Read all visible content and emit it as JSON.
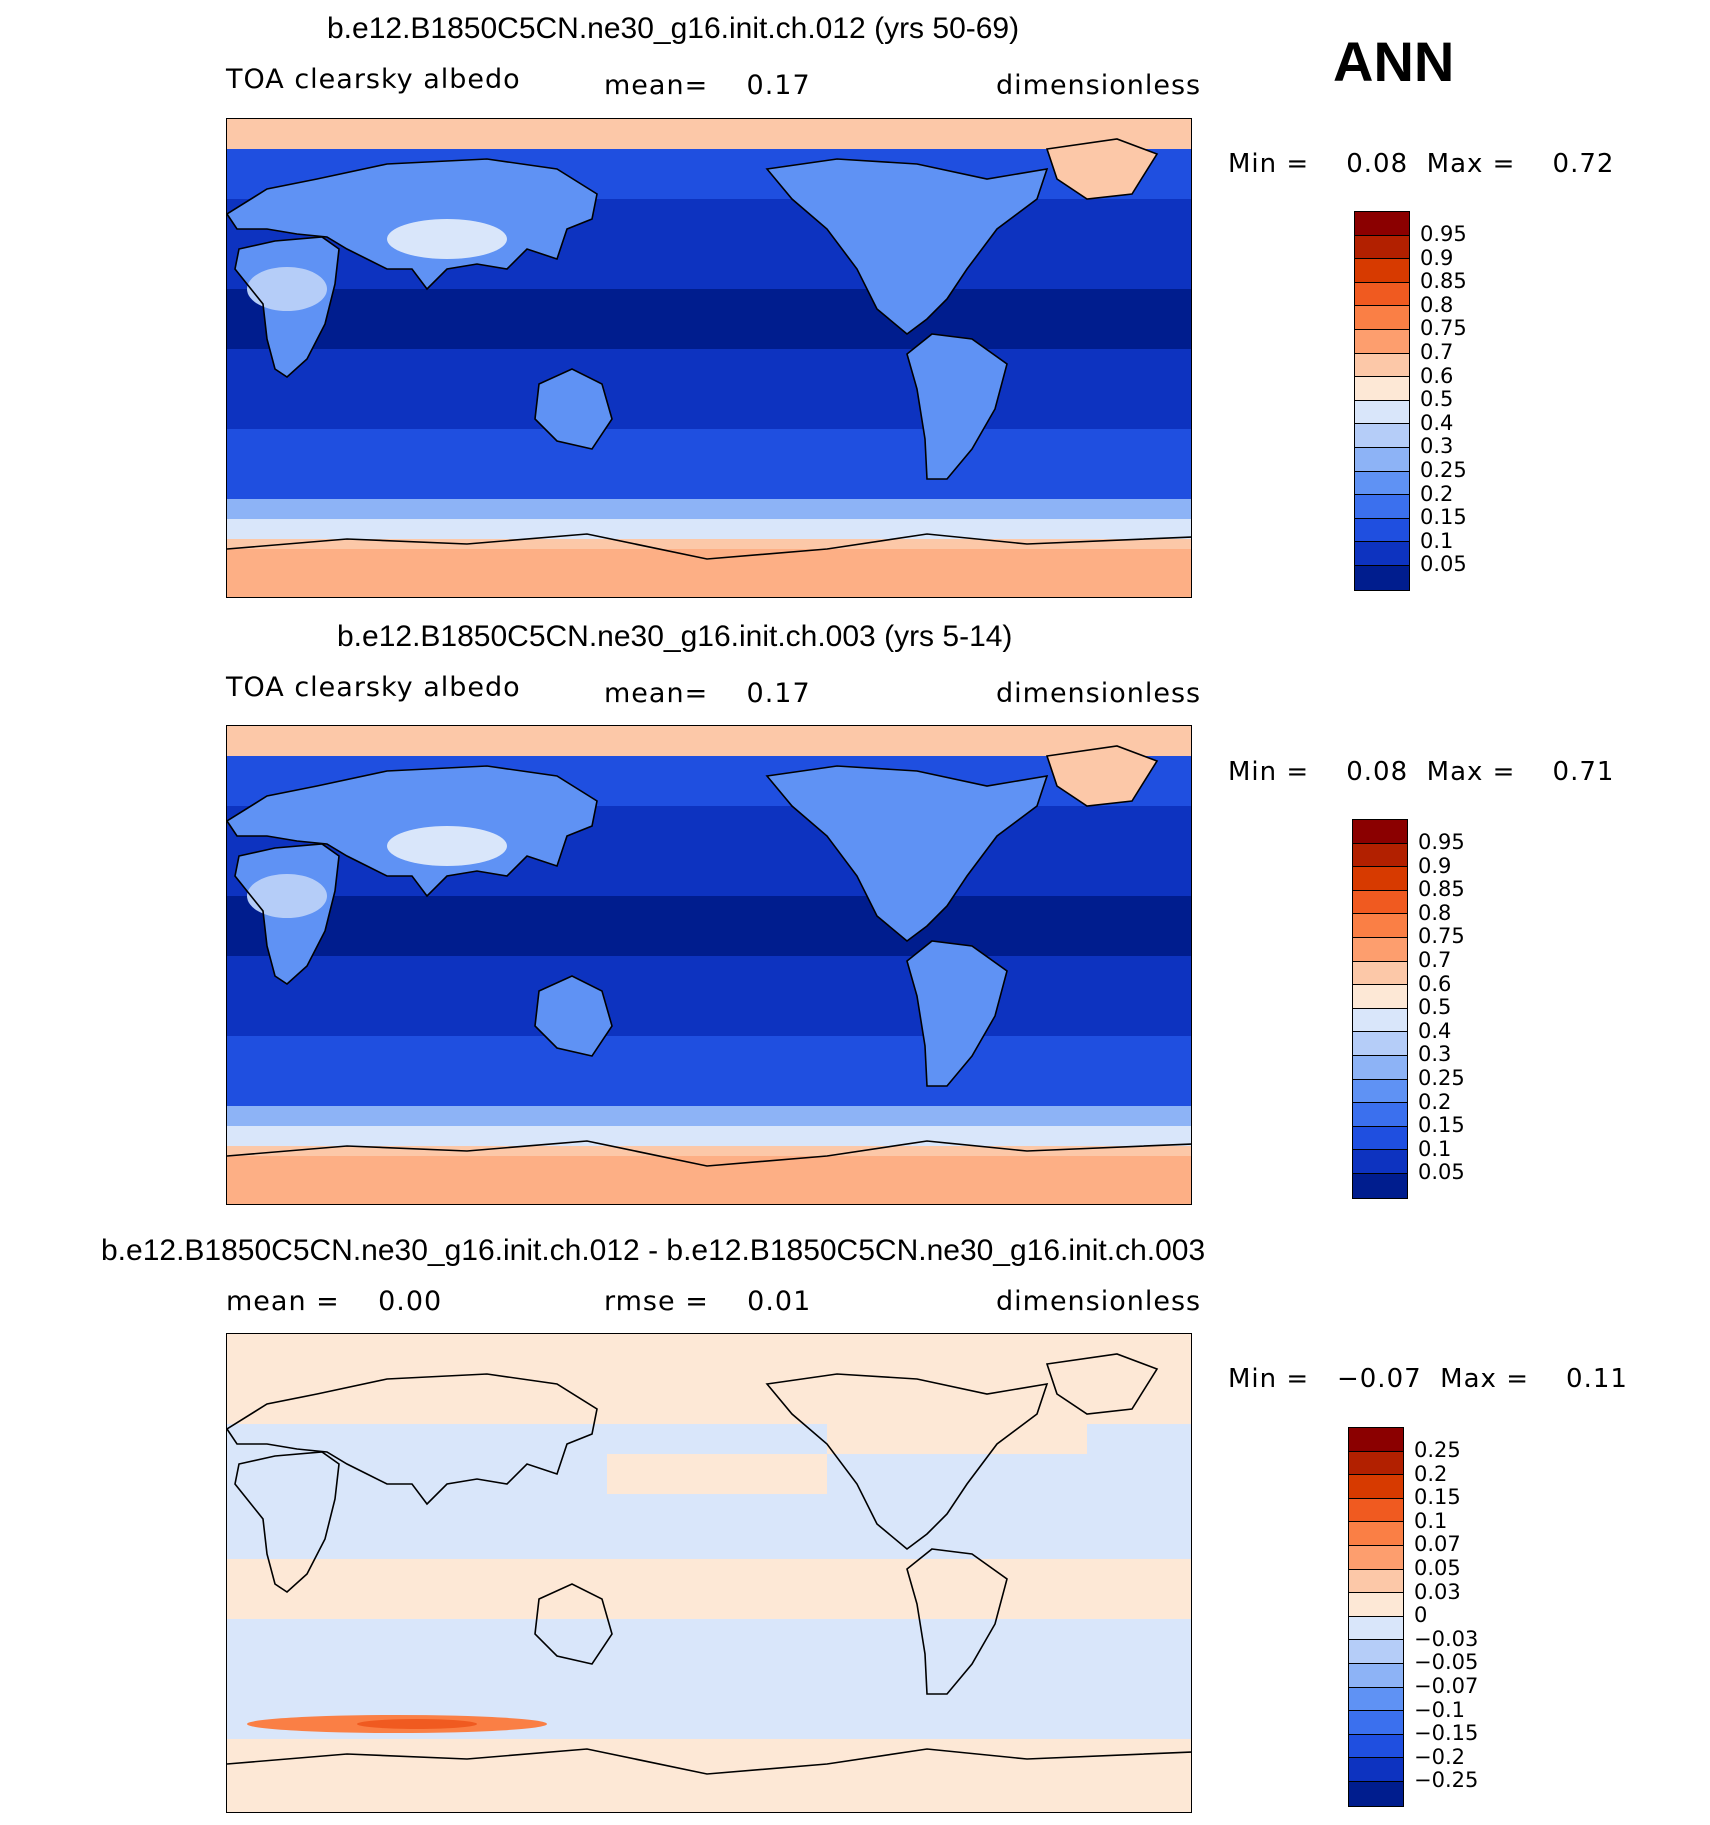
{
  "season": "ANN",
  "panels": [
    {
      "title": "b.e12.B1850C5CN.ne30_g16.init.ch.012 (yrs 50-69)",
      "left_text": "TOA clearsky albedo",
      "mid_text": "mean=    0.17",
      "right_text": "dimensionless",
      "minmax": "Min =    0.08  Max =    0.72",
      "colorbar_labels": [
        "0.95",
        "0.9",
        "0.85",
        "0.8",
        "0.75",
        "0.7",
        "0.6",
        "0.5",
        "0.4",
        "0.3",
        "0.25",
        "0.2",
        "0.15",
        "0.1",
        "0.05"
      ],
      "colorbar_colors": [
        "#8b0000",
        "#b22000",
        "#d73a00",
        "#f05a20",
        "#fa7f45",
        "#fd9e6e",
        "#fcc8a8",
        "#fde8d6",
        "#d9e6fa",
        "#b5cdf8",
        "#8db3f6",
        "#5f92f4",
        "#3b70ee",
        "#1f4fe0",
        "#0d33c0",
        "#001d8e"
      ],
      "field": "abs"
    },
    {
      "title": "b.e12.B1850C5CN.ne30_g16.init.ch.003 (yrs 5-14)",
      "left_text": "TOA clearsky albedo",
      "mid_text": "mean=    0.17",
      "right_text": "dimensionless",
      "minmax": "Min =    0.08  Max =    0.71",
      "colorbar_labels": [
        "0.95",
        "0.9",
        "0.85",
        "0.8",
        "0.75",
        "0.7",
        "0.6",
        "0.5",
        "0.4",
        "0.3",
        "0.25",
        "0.2",
        "0.15",
        "0.1",
        "0.05"
      ],
      "colorbar_colors": [
        "#8b0000",
        "#b22000",
        "#d73a00",
        "#f05a20",
        "#fa7f45",
        "#fd9e6e",
        "#fcc8a8",
        "#fde8d6",
        "#d9e6fa",
        "#b5cdf8",
        "#8db3f6",
        "#5f92f4",
        "#3b70ee",
        "#1f4fe0",
        "#0d33c0",
        "#001d8e"
      ],
      "field": "abs"
    },
    {
      "title": "b.e12.B1850C5CN.ne30_g16.init.ch.012 - b.e12.B1850C5CN.ne30_g16.init.ch.003",
      "left_text": "mean =    0.00",
      "mid_text": "rmse =    0.01",
      "right_text": "dimensionless",
      "minmax": "Min =   −0.07  Max =    0.11",
      "colorbar_labels": [
        "0.25",
        "0.2",
        "0.15",
        "0.1",
        "0.07",
        "0.05",
        "0.03",
        "0",
        "−0.03",
        "−0.05",
        "−0.07",
        "−0.1",
        "−0.15",
        "−0.2",
        "−0.25"
      ],
      "colorbar_colors": [
        "#8b0000",
        "#b22000",
        "#d73a00",
        "#f05a20",
        "#fa7f45",
        "#fd9e6e",
        "#fcc8a8",
        "#fde8d6",
        "#d9e6fa",
        "#b5cdf8",
        "#8db3f6",
        "#5f92f4",
        "#3b70ee",
        "#1f4fe0",
        "#0d33c0",
        "#001d8e"
      ],
      "field": "diff"
    }
  ]
}
